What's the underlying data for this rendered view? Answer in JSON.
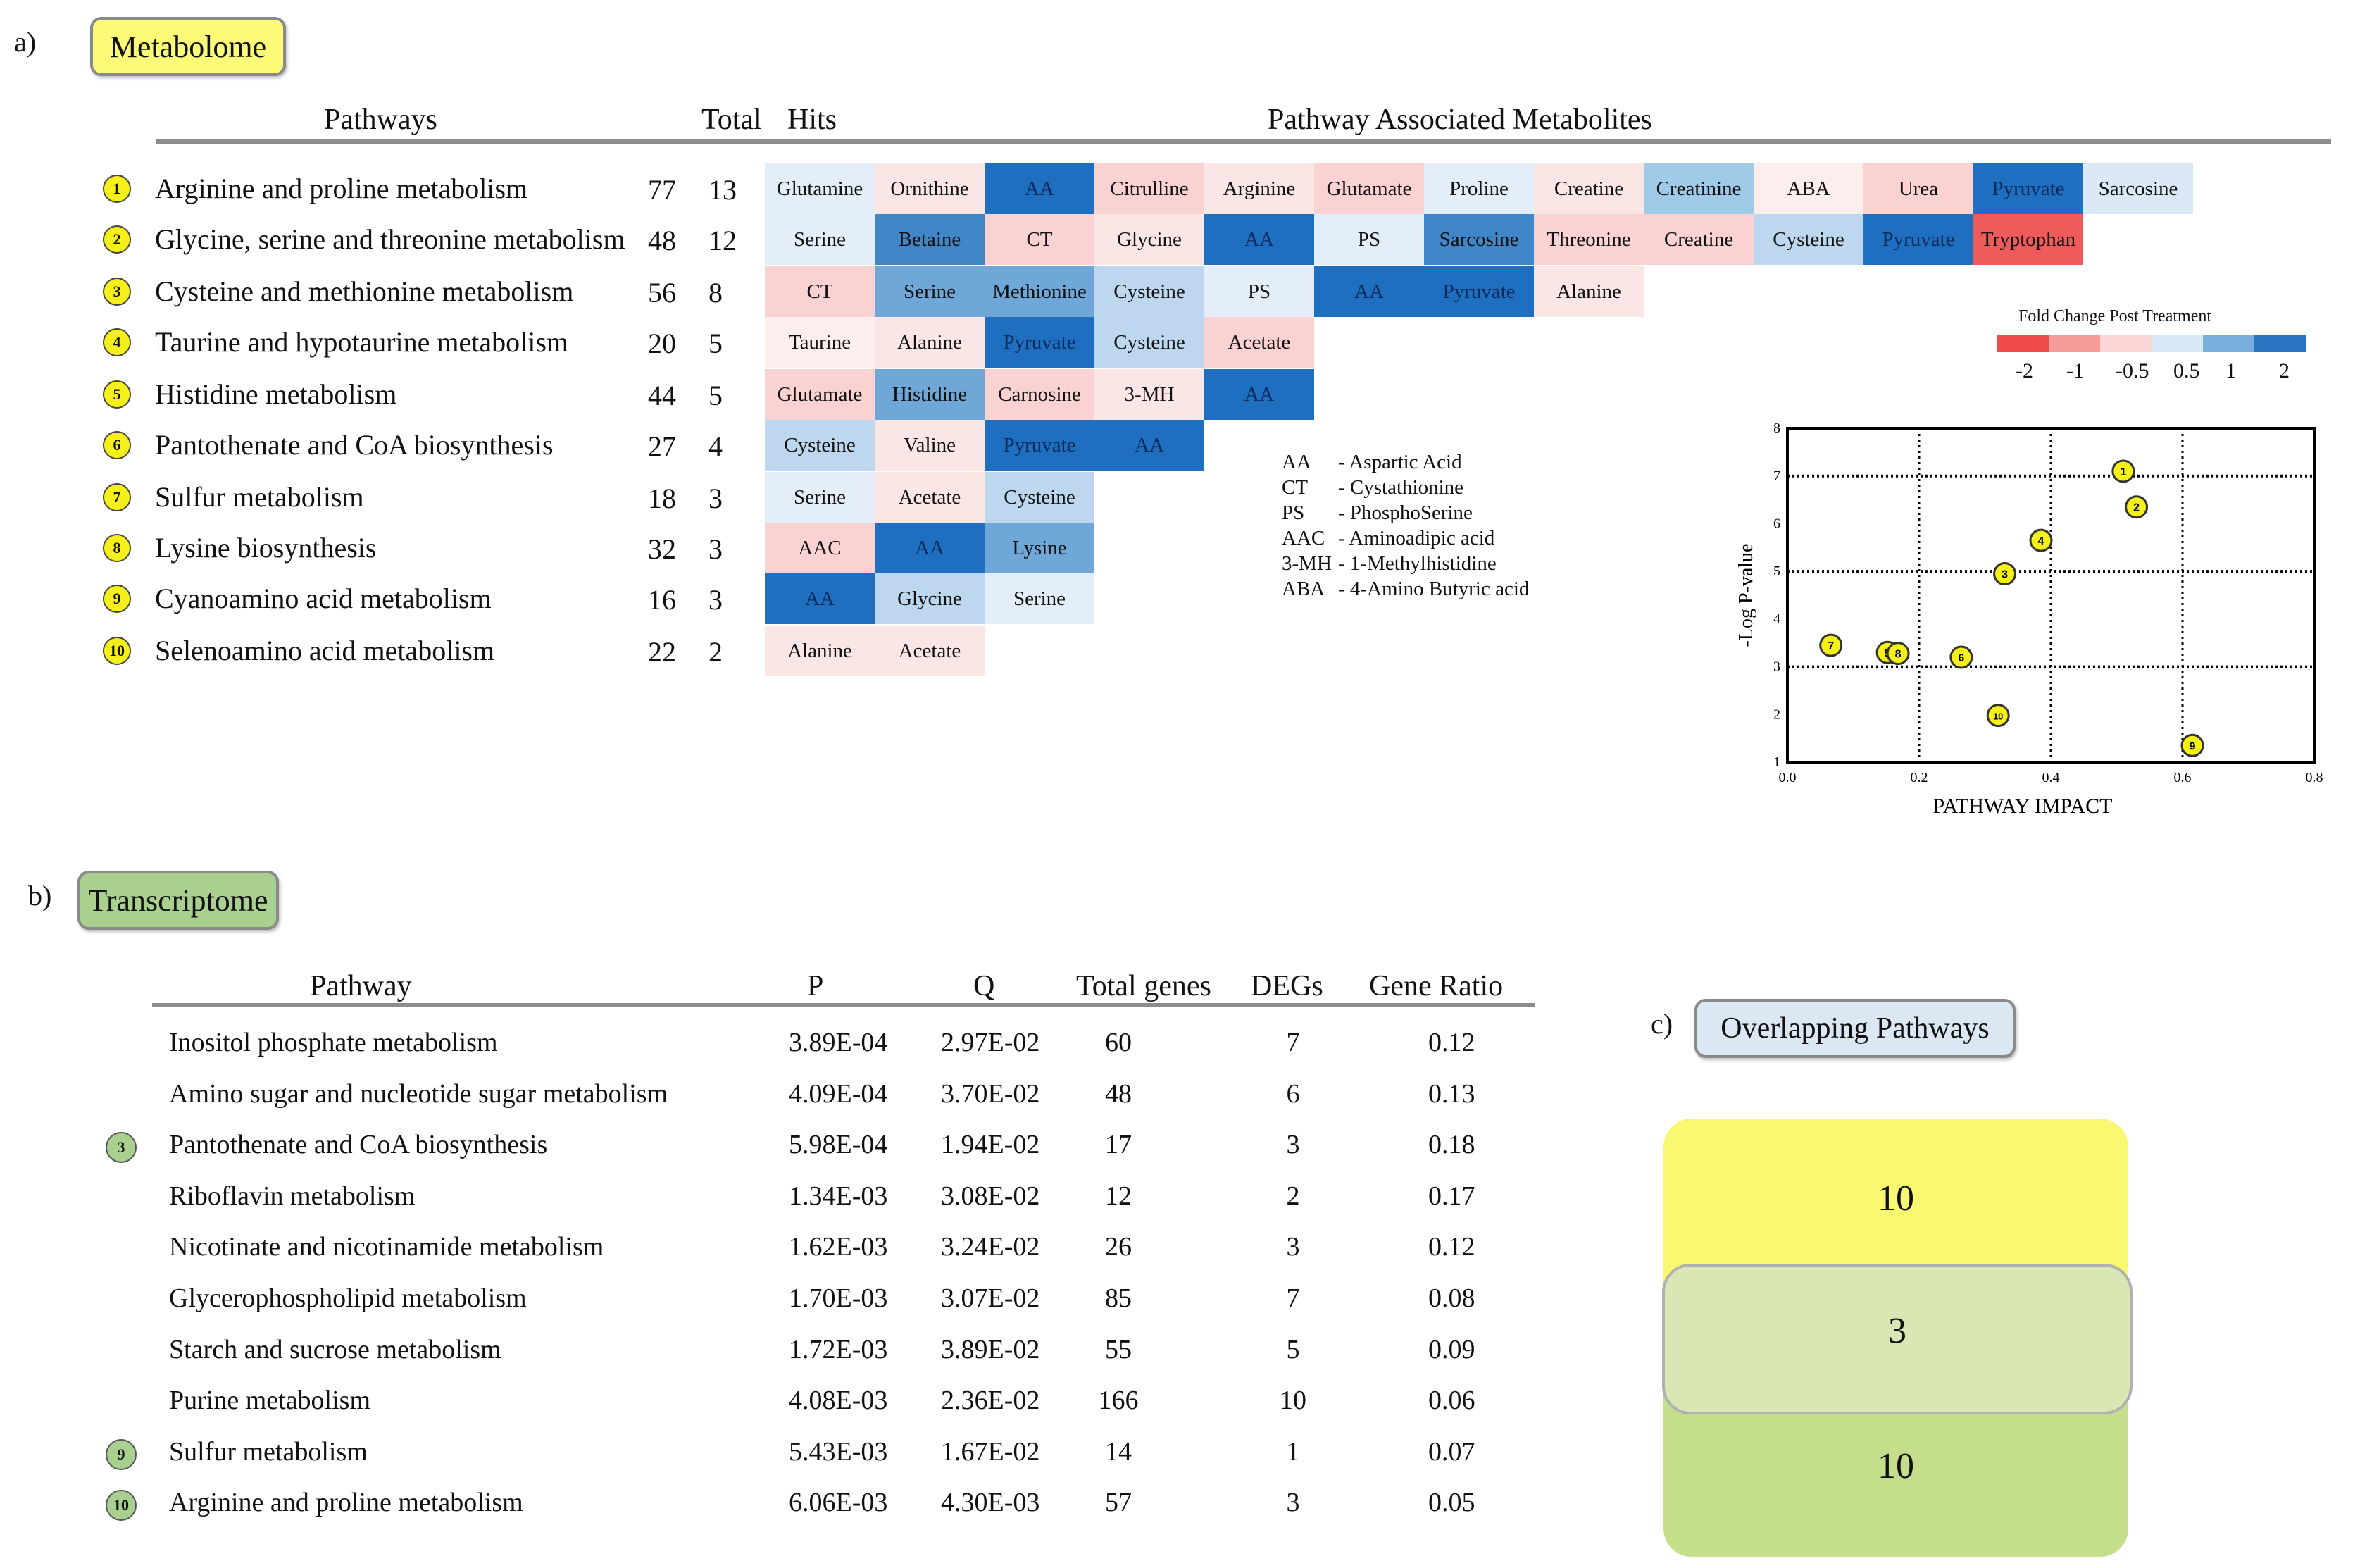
{
  "panel_a": {
    "letter": "a)",
    "title": "Metabolome",
    "headers": {
      "pathways": "Pathways",
      "total": "Total",
      "hits": "Hits",
      "metabolites": "Pathway Associated Metabolites"
    },
    "rows": [
      {
        "n": "1",
        "name": "Arginine and proline metabolism",
        "total": "77",
        "hits": "13",
        "cells": [
          [
            "Glutamine",
            "#e3eef8"
          ],
          [
            "Ornithine",
            "#fbe6e6"
          ],
          [
            "AA",
            "#1f6fc0"
          ],
          [
            "Citrulline",
            "#fbd2d2"
          ],
          [
            "Arginine",
            "#fbe6e6"
          ],
          [
            "Glutamate",
            "#fbd2d2"
          ],
          [
            "Proline",
            "#e3eef8"
          ],
          [
            "Creatine",
            "#fbe6e6"
          ],
          [
            "Creatinine",
            "#9fcbe8"
          ],
          [
            "ABA",
            "#fdeeee"
          ],
          [
            "Urea",
            "#fbd2d2"
          ],
          [
            "Pyruvate",
            "#1f6fc0"
          ],
          [
            "Sarcosine",
            "#dbe9f6"
          ]
        ]
      },
      {
        "n": "2",
        "name": "Glycine, serine and threonine metabolism",
        "total": "48",
        "hits": "12",
        "cells": [
          [
            "Serine",
            "#e3eef8"
          ],
          [
            "Betaine",
            "#3f87c8"
          ],
          [
            "CT",
            "#fbd2d2"
          ],
          [
            "Glycine",
            "#fbe6e6"
          ],
          [
            "AA",
            "#1f6fc0"
          ],
          [
            "PS",
            "#e3eef8"
          ],
          [
            "Sarcosine",
            "#3f87c8"
          ],
          [
            "Threonine",
            "#fbd2d2"
          ],
          [
            "Creatine",
            "#fbd2d2"
          ],
          [
            "Cysteine",
            "#bcd7ee"
          ],
          [
            "Pyruvate",
            "#1f6fc0"
          ],
          [
            "Tryptophan",
            "#ef5a5a"
          ]
        ]
      },
      {
        "n": "3",
        "name": "Cysteine and methionine metabolism",
        "total": "56",
        "hits": "8",
        "cells": [
          [
            "CT",
            "#fbd2d2"
          ],
          [
            "Serine",
            "#6fa8d8"
          ],
          [
            "Methionine",
            "#6fa8d8"
          ],
          [
            "Cysteine",
            "#bcd7ee"
          ],
          [
            "PS",
            "#e3eef8"
          ],
          [
            "AA",
            "#1f6fc0"
          ],
          [
            "Pyruvate",
            "#1f6fc0"
          ],
          [
            "Alanine",
            "#fbe6e6"
          ]
        ]
      },
      {
        "n": "4",
        "name": "Taurine and hypotaurine metabolism",
        "total": "20",
        "hits": "5",
        "cells": [
          [
            "Taurine",
            "#fdeeee"
          ],
          [
            "Alanine",
            "#fbe6e6"
          ],
          [
            "Pyruvate",
            "#1f6fc0"
          ],
          [
            "Cysteine",
            "#bcd7ee"
          ],
          [
            "Acetate",
            "#fbd2d2"
          ]
        ]
      },
      {
        "n": "5",
        "name": "Histidine metabolism",
        "total": "44",
        "hits": "5",
        "cells": [
          [
            "Glutamate",
            "#fbd2d2"
          ],
          [
            "Histidine",
            "#6fa8d8"
          ],
          [
            "Carnosine",
            "#fbd2d2"
          ],
          [
            "3-MH",
            "#fbe6e6"
          ],
          [
            "AA",
            "#1f6fc0"
          ]
        ]
      },
      {
        "n": "6",
        "name": "Pantothenate and CoA biosynthesis",
        "total": "27",
        "hits": "4",
        "cells": [
          [
            "Cysteine",
            "#bcd7ee"
          ],
          [
            "Valine",
            "#fbe6e6"
          ],
          [
            "Pyruvate",
            "#1f6fc0"
          ],
          [
            "AA",
            "#1f6fc0"
          ]
        ]
      },
      {
        "n": "7",
        "name": "Sulfur metabolism",
        "total": "18",
        "hits": "3",
        "cells": [
          [
            "Serine",
            "#e3eef8"
          ],
          [
            "Acetate",
            "#fbe6e6"
          ],
          [
            "Cysteine",
            "#bcd7ee"
          ]
        ]
      },
      {
        "n": "8",
        "name": "Lysine biosynthesis",
        "total": "32",
        "hits": "3",
        "cells": [
          [
            "AAC",
            "#fbd2d2"
          ],
          [
            "AA",
            "#1f6fc0"
          ],
          [
            "Lysine",
            "#6fa8d8"
          ]
        ]
      },
      {
        "n": "9",
        "name": "Cyanoamino acid metabolism",
        "total": "16",
        "hits": "3",
        "cells": [
          [
            "AA",
            "#1f6fc0"
          ],
          [
            "Glycine",
            "#bcd7ee"
          ],
          [
            "Serine",
            "#e3eef8"
          ]
        ]
      },
      {
        "n": "10",
        "name": "Selenoamino acid metabolism",
        "total": "22",
        "hits": "2",
        "cells": [
          [
            "Alanine",
            "#fbe6e6"
          ],
          [
            "Acetate",
            "#fbe6e6"
          ]
        ]
      }
    ],
    "abbreviations": [
      [
        "AA",
        "- Aspartic Acid"
      ],
      [
        "CT",
        "- Cystathionine"
      ],
      [
        "PS",
        "- PhosphoSerine"
      ],
      [
        "AAC",
        "- Aminoadipic acid"
      ],
      [
        "3-MH",
        "- 1-Methylhistidine"
      ],
      [
        "ABA",
        "- 4-Amino Butyric acid"
      ]
    ],
    "legend": {
      "title": "Fold Change Post Treatment",
      "colors": [
        "#ef4b4b",
        "#f69a9a",
        "#fbd6d6",
        "#d7e7f5",
        "#79afdc",
        "#2b74c2"
      ],
      "labels": [
        "-2",
        "-1",
        "-0.5",
        "0.5",
        "1",
        "2"
      ]
    }
  },
  "chart_data": {
    "type": "scatter",
    "title": "",
    "xlabel": "PATHWAY IMPACT",
    "ylabel": "-Log P-value",
    "xlim": [
      0,
      0.8
    ],
    "ylim": [
      1,
      8
    ],
    "xticks": [
      "0.0",
      "0.2",
      "0.4",
      "0.6",
      "0.8"
    ],
    "yticks": [
      "1",
      "2",
      "3",
      "4",
      "5",
      "6",
      "7",
      "8"
    ],
    "vlines": [
      0.2,
      0.4,
      0.6
    ],
    "hlines": [
      3,
      5,
      7
    ],
    "points": [
      {
        "label": "1",
        "x": 0.51,
        "y": 7.1
      },
      {
        "label": "2",
        "x": 0.53,
        "y": 6.35
      },
      {
        "label": "3",
        "x": 0.33,
        "y": 4.95
      },
      {
        "label": "4",
        "x": 0.385,
        "y": 5.65
      },
      {
        "label": "5",
        "x": 0.152,
        "y": 3.3
      },
      {
        "label": "6",
        "x": 0.264,
        "y": 3.2
      },
      {
        "label": "7",
        "x": 0.066,
        "y": 3.45
      },
      {
        "label": "8",
        "x": 0.168,
        "y": 3.28
      },
      {
        "label": "9",
        "x": 0.615,
        "y": 1.35
      },
      {
        "label": "10",
        "x": 0.32,
        "y": 1.98
      }
    ]
  },
  "panel_b": {
    "letter": "b)",
    "title": "Transcriptome",
    "headers": {
      "pathway": "Pathway",
      "p": "P",
      "q": "Q",
      "total": "Total genes",
      "degs": "DEGs",
      "ratio": "Gene Ratio"
    },
    "rows": [
      {
        "n": "",
        "name": "Inositol phosphate metabolism",
        "p": "3.89E-04",
        "q": "2.97E-02",
        "total": "60",
        "degs": "7",
        "ratio": "0.12"
      },
      {
        "n": "",
        "name": "Amino sugar and nucleotide sugar metabolism",
        "p": "4.09E-04",
        "q": "3.70E-02",
        "total": "48",
        "degs": "6",
        "ratio": "0.13"
      },
      {
        "n": "3",
        "name": "Pantothenate and CoA biosynthesis",
        "p": "5.98E-04",
        "q": "1.94E-02",
        "total": "17",
        "degs": "3",
        "ratio": "0.18"
      },
      {
        "n": "",
        "name": "Riboflavin metabolism",
        "p": "1.34E-03",
        "q": "3.08E-02",
        "total": "12",
        "degs": "2",
        "ratio": "0.17"
      },
      {
        "n": "",
        "name": "Nicotinate and nicotinamide metabolism",
        "p": "1.62E-03",
        "q": "3.24E-02",
        "total": "26",
        "degs": "3",
        "ratio": "0.12"
      },
      {
        "n": "",
        "name": "Glycerophospholipid metabolism",
        "p": "1.70E-03",
        "q": "3.07E-02",
        "total": "85",
        "degs": "7",
        "ratio": "0.08"
      },
      {
        "n": "",
        "name": "Starch and sucrose metabolism",
        "p": "1.72E-03",
        "q": "3.89E-02",
        "total": "55",
        "degs": "5",
        "ratio": "0.09"
      },
      {
        "n": "",
        "name": "Purine metabolism",
        "p": "4.08E-03",
        "q": "2.36E-02",
        "total": "166",
        "degs": "10",
        "ratio": "0.06"
      },
      {
        "n": "9",
        "name": "Sulfur metabolism",
        "p": "5.43E-03",
        "q": "1.67E-02",
        "total": "14",
        "degs": "1",
        "ratio": "0.07"
      },
      {
        "n": "10",
        "name": "Arginine and proline metabolism",
        "p": "6.06E-03",
        "q": "4.30E-03",
        "total": "57",
        "degs": "3",
        "ratio": "0.05"
      }
    ]
  },
  "panel_c": {
    "letter": "c)",
    "title": "Overlapping Pathways",
    "metabolome_only": "10",
    "overlap": "3",
    "transcriptome_only": "10",
    "colors": {
      "metabolome": "#f9f871",
      "overlap": "#d8e7b4",
      "transcriptome": "#c5de8b"
    }
  }
}
